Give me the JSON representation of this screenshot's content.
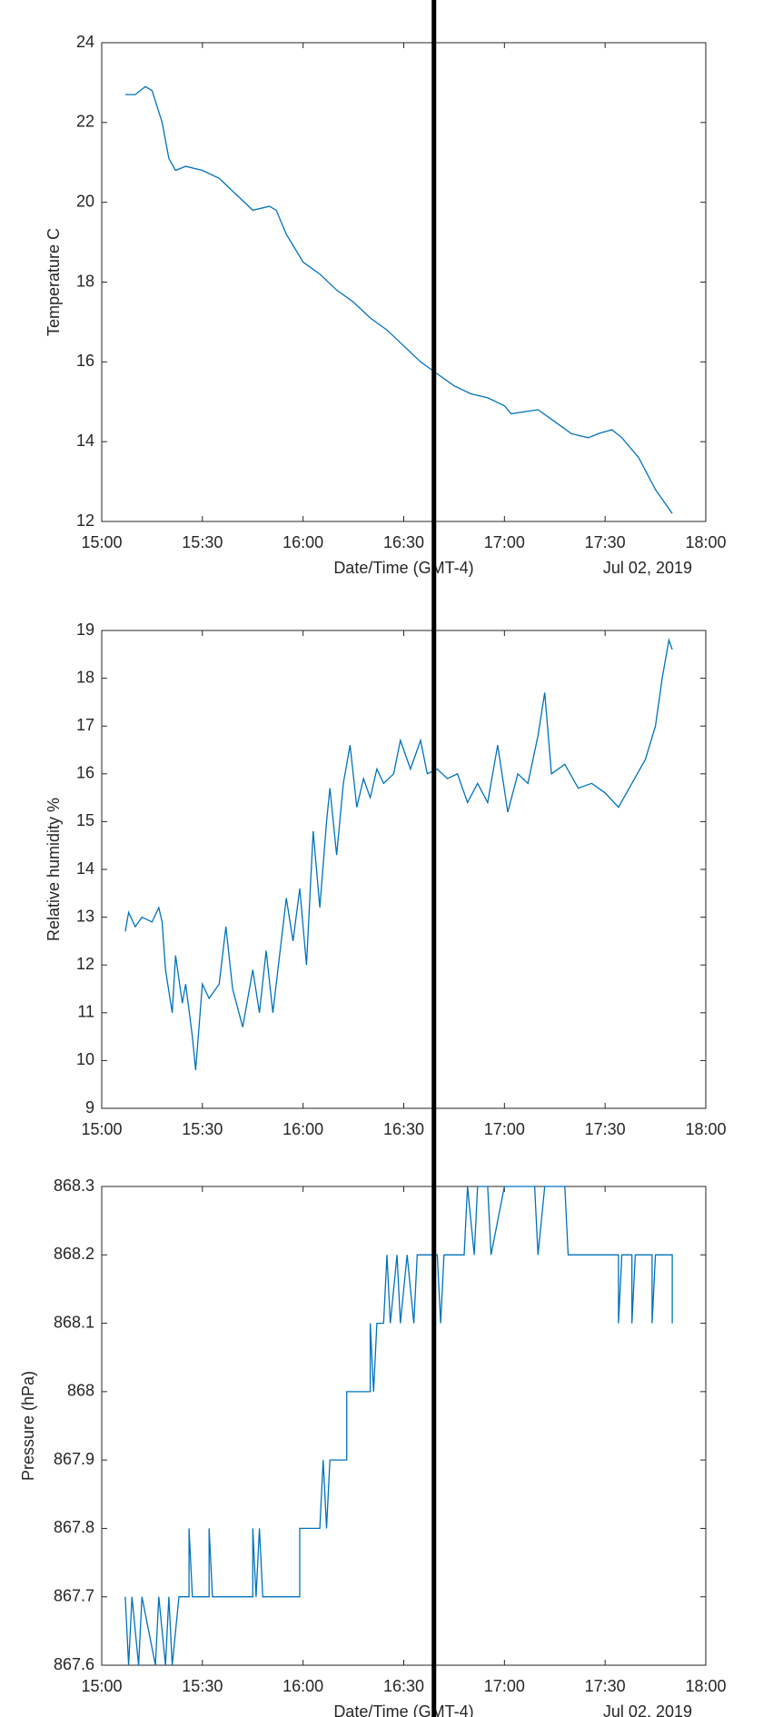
{
  "chart_data": [
    {
      "type": "line",
      "ylabel": "Temperature C",
      "xlabel": "Date/Time (GMT-4)",
      "date_label": "Jul 02, 2019",
      "color": "#0072bd",
      "xlim": [
        "15:00",
        "18:00"
      ],
      "xticks": [
        "15:00",
        "15:30",
        "16:00",
        "16:30",
        "17:00",
        "17:30",
        "18:00"
      ],
      "ylim": [
        12,
        24
      ],
      "yticks": [
        12,
        14,
        16,
        18,
        20,
        22,
        24
      ],
      "marker_line": "16:39",
      "x": [
        "15:07",
        "15:10",
        "15:13",
        "15:15",
        "15:18",
        "15:20",
        "15:22",
        "15:25",
        "15:30",
        "15:35",
        "15:40",
        "15:45",
        "15:50",
        "15:52",
        "15:55",
        "16:00",
        "16:05",
        "16:10",
        "16:15",
        "16:20",
        "16:25",
        "16:30",
        "16:35",
        "16:40",
        "16:45",
        "16:50",
        "16:55",
        "17:00",
        "17:02",
        "17:10",
        "17:15",
        "17:20",
        "17:25",
        "17:28",
        "17:32",
        "17:35",
        "17:40",
        "17:45",
        "17:50"
      ],
      "values": [
        22.7,
        22.7,
        22.9,
        22.8,
        22.0,
        21.1,
        20.8,
        20.9,
        20.8,
        20.6,
        20.2,
        19.8,
        19.9,
        19.8,
        19.2,
        18.5,
        18.2,
        17.8,
        17.5,
        17.1,
        16.8,
        16.4,
        16.0,
        15.7,
        15.4,
        15.2,
        15.1,
        14.9,
        14.7,
        14.8,
        14.5,
        14.2,
        14.1,
        14.2,
        14.3,
        14.1,
        13.6,
        12.8,
        12.2
      ]
    },
    {
      "type": "line",
      "ylabel": "Relative humidity %",
      "color": "#0072bd",
      "xlim": [
        "15:00",
        "18:00"
      ],
      "xticks": [
        "15:00",
        "15:30",
        "16:00",
        "16:30",
        "17:00",
        "17:30",
        "18:00"
      ],
      "ylim": [
        9,
        19
      ],
      "yticks": [
        9,
        10,
        11,
        12,
        13,
        14,
        15,
        16,
        17,
        18,
        19
      ],
      "x": [
        "15:07",
        "15:08",
        "15:10",
        "15:12",
        "15:15",
        "15:17",
        "15:18",
        "15:19",
        "15:21",
        "15:22",
        "15:24",
        "15:25",
        "15:27",
        "15:28",
        "15:30",
        "15:32",
        "15:35",
        "15:37",
        "15:39",
        "15:42",
        "15:45",
        "15:47",
        "15:49",
        "15:51",
        "15:53",
        "15:55",
        "15:57",
        "15:59",
        "16:01",
        "16:03",
        "16:05",
        "16:07",
        "16:08",
        "16:10",
        "16:12",
        "16:14",
        "16:16",
        "16:18",
        "16:20",
        "16:22",
        "16:24",
        "16:27",
        "16:29",
        "16:32",
        "16:35",
        "16:37",
        "16:40",
        "16:43",
        "16:46",
        "16:49",
        "16:52",
        "16:55",
        "16:58",
        "17:01",
        "17:04",
        "17:07",
        "17:10",
        "17:12",
        "17:14",
        "17:18",
        "17:22",
        "17:26",
        "17:30",
        "17:34",
        "17:38",
        "17:42",
        "17:45",
        "17:47",
        "17:49",
        "17:50"
      ],
      "values": [
        12.7,
        13.1,
        12.8,
        13.0,
        12.9,
        13.2,
        12.9,
        11.9,
        11.0,
        12.2,
        11.2,
        11.6,
        10.5,
        9.8,
        11.6,
        11.3,
        11.6,
        12.8,
        11.5,
        10.7,
        11.9,
        11.0,
        12.3,
        11.0,
        12.2,
        13.4,
        12.5,
        13.6,
        12.0,
        14.8,
        13.2,
        15.0,
        15.7,
        14.3,
        15.8,
        16.6,
        15.3,
        15.9,
        15.5,
        16.1,
        15.8,
        16.0,
        16.7,
        16.1,
        16.7,
        16.0,
        16.1,
        15.9,
        16.0,
        15.4,
        15.8,
        15.4,
        16.6,
        15.2,
        16.0,
        15.8,
        16.8,
        17.7,
        16.0,
        16.2,
        15.7,
        15.8,
        15.6,
        15.3,
        15.8,
        16.3,
        17.0,
        18.0,
        18.8,
        18.6
      ]
    },
    {
      "type": "line",
      "ylabel": "Pressure (hPa)",
      "xlabel": "Date/Time (GMT-4)",
      "date_label": "Jul 02, 2019",
      "color": "#0072bd",
      "xlim": [
        "15:00",
        "18:00"
      ],
      "xticks": [
        "15:00",
        "15:30",
        "16:00",
        "16:30",
        "17:00",
        "17:30",
        "18:00"
      ],
      "ylim": [
        867.6,
        868.3
      ],
      "yticks": [
        867.6,
        867.7,
        867.8,
        867.9,
        868,
        868.1,
        868.2,
        868.3
      ],
      "x": [
        "15:07",
        "15:08",
        "15:09",
        "15:11",
        "15:12",
        "15:16",
        "15:17",
        "15:19",
        "15:20",
        "15:21",
        "15:23",
        "15:26",
        "15:26",
        "15:27",
        "15:32",
        "15:32",
        "15:33",
        "15:45",
        "15:45",
        "15:46",
        "15:47",
        "15:48",
        "15:59",
        "15:59",
        "16:05",
        "16:06",
        "16:07",
        "16:08",
        "16:09",
        "16:13",
        "16:13",
        "16:20",
        "16:20",
        "16:21",
        "16:22",
        "16:24",
        "16:25",
        "16:26",
        "16:28",
        "16:29",
        "16:31",
        "16:33",
        "16:34",
        "16:40",
        "16:41",
        "16:42",
        "16:48",
        "16:49",
        "16:51",
        "16:52",
        "16:55",
        "16:56",
        "17:00",
        "17:09",
        "17:10",
        "17:12",
        "17:18",
        "17:19",
        "17:34",
        "17:34",
        "17:35",
        "17:38",
        "17:38",
        "17:39",
        "17:44",
        "17:44",
        "17:45",
        "17:50",
        "17:50"
      ],
      "values": [
        867.7,
        867.6,
        867.7,
        867.6,
        867.7,
        867.6,
        867.7,
        867.6,
        867.7,
        867.6,
        867.7,
        867.7,
        867.8,
        867.7,
        867.7,
        867.8,
        867.7,
        867.7,
        867.8,
        867.7,
        867.8,
        867.7,
        867.7,
        867.8,
        867.8,
        867.9,
        867.8,
        867.9,
        867.9,
        867.9,
        868,
        868,
        868.1,
        868,
        868.1,
        868.1,
        868.2,
        868.1,
        868.2,
        868.1,
        868.2,
        868.1,
        868.2,
        868.2,
        868.1,
        868.2,
        868.2,
        868.3,
        868.2,
        868.3,
        868.3,
        868.2,
        868.3,
        868.3,
        868.2,
        868.3,
        868.3,
        868.2,
        868.2,
        868.1,
        868.2,
        868.2,
        868.1,
        868.2,
        868.2,
        868.1,
        868.2,
        868.2,
        868.1
      ]
    }
  ]
}
